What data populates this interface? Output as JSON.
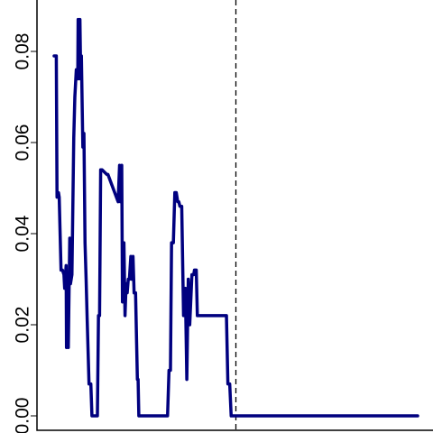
{
  "chart_data": {
    "type": "line",
    "title": "",
    "xlabel": "",
    "ylabel": "",
    "xlim": [
      0,
      100
    ],
    "ylim": [
      0.0,
      0.09
    ],
    "grid": false,
    "y_ticks": [
      {
        "value": 0.0,
        "label": "0.00"
      },
      {
        "value": 0.02,
        "label": "0.02"
      },
      {
        "value": 0.04,
        "label": "0.04"
      },
      {
        "value": 0.06,
        "label": "0.06"
      },
      {
        "value": 0.08,
        "label": "0.08"
      }
    ],
    "vline": {
      "x": 50,
      "style": "dashed",
      "color": "#000000"
    },
    "series": [
      {
        "color": "#00007f",
        "x": [
          0,
          0.6,
          0.8,
          1.2,
          1.4,
          1.9,
          2.3,
          2.7,
          2.9,
          3.3,
          3.4,
          3.5,
          3.9,
          4.3,
          4.5,
          4.9,
          5.4,
          5.7,
          6.1,
          6.5,
          6.6,
          6.9,
          7.1,
          7.3,
          7.5,
          7.9,
          8.2,
          8.5,
          8.8,
          9.1,
          9.6,
          10.1,
          10.4,
          10.6,
          10.8,
          11.2,
          11.5,
          11.9,
          12.2,
          12.5,
          12.8,
          13.2,
          14.5,
          14.8,
          17.6,
          18.0,
          18.2,
          18.6,
          18.8,
          19.2,
          19.5,
          19.8,
          20.1,
          20.4,
          20.7,
          21.1,
          21.3,
          21.7,
          22.0,
          22.4,
          22.9,
          23.1,
          23.3,
          23.8,
          25.5,
          25.9,
          27.0,
          27.3,
          31.2,
          31.6,
          32.0,
          32.3,
          32.8,
          33.2,
          33.6,
          34.0,
          34.3,
          34.6,
          35.1,
          35.6,
          36.1,
          36.5,
          36.9,
          37.3,
          37.9,
          38.4,
          38.6,
          39.1,
          39.4,
          47.4,
          47.8,
          48.3,
          48.7,
          49.1,
          49.4,
          49.8,
          50.4,
          51.0,
          51.4,
          51.8,
          52.3,
          52.6,
          53.0,
          53.5,
          54.0,
          54.3,
          54.8,
          55.4,
          55.9,
          56.3,
          56.6,
          57.1,
          57.6,
          58.3,
          100
        ],
        "y": [
          0.079,
          0.079,
          0.048,
          0.049,
          0.048,
          0.032,
          0.032,
          0.031,
          0.028,
          0.033,
          0.015,
          0.029,
          0.015,
          0.039,
          0.029,
          0.031,
          0.061,
          0.07,
          0.076,
          0.074,
          0.087,
          0.074,
          0.087,
          0.075,
          0.079,
          0.059,
          0.062,
          0.038,
          0.03,
          0.021,
          0.007,
          0.007,
          0.0,
          0.0,
          0.0,
          0.0,
          0.0,
          0.0,
          0.022,
          0.022,
          0.054,
          0.054,
          0.053,
          0.053,
          0.047,
          0.055,
          0.047,
          0.055,
          0.025,
          0.038,
          0.022,
          0.029,
          0.027,
          0.03,
          0.03,
          0.035,
          0.03,
          0.035,
          0.027,
          0.027,
          0.008,
          0.008,
          0.0,
          0.0,
          0.0,
          0.0,
          0.0,
          0.0,
          0.0,
          0.01,
          0.01,
          0.038,
          0.038,
          0.049,
          0.049,
          0.047,
          0.047,
          0.046,
          0.046,
          0.022,
          0.028,
          0.008,
          0.03,
          0.02,
          0.031,
          0.031,
          0.032,
          0.032,
          0.022,
          0.022,
          0.007,
          0.007,
          0.0,
          0.0,
          0.0,
          0.0,
          0.0,
          0.0,
          0.0,
          0.0,
          0.0,
          0.0,
          0.0,
          0.0,
          0.0,
          0.0,
          0.0,
          0.0,
          0.0,
          0.0,
          0.0,
          0.0,
          0.0,
          0.0,
          0.0
        ]
      }
    ]
  }
}
